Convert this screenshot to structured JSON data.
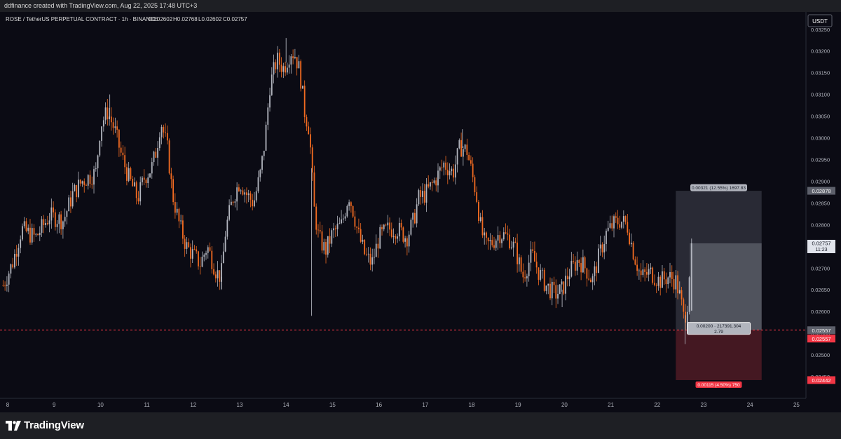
{
  "header": {
    "caption": "ddfinance created with TradingView.com, Aug 22, 2025 17:48 UTC+3"
  },
  "legend": {
    "symbol": "ROSE / TetherUS PERPETUAL CONTRACT · 1h · BINANCE",
    "open": "O0.02602",
    "high": "H0.02768",
    "low": "L0.02602",
    "close": "C0.02757"
  },
  "currency_button": "USDT",
  "footer": {
    "brand": "TradingView",
    "logo_icon": "tradingview-logo-icon"
  },
  "colors": {
    "background": "#0b0b14",
    "up_candle": "#b2b5be",
    "down_candle": "#f26b21",
    "price_line": "#f23645",
    "profit_zone": "#434651",
    "loss_zone": "#4a1a24"
  },
  "chart_data": {
    "type": "candlestick",
    "title": "ROSE / TetherUS PERPETUAL CONTRACT · 1h · BINANCE",
    "y_axis": {
      "min": 0.024,
      "max": 0.0329,
      "ticks": [
        "0.03250",
        "0.03200",
        "0.03150",
        "0.03100",
        "0.03050",
        "0.03000",
        "0.02950",
        "0.02900",
        "0.02850",
        "0.02800",
        "0.02750",
        "0.02700",
        "0.02650",
        "0.02600",
        "0.02550",
        "0.02500",
        "0.02450",
        "0.02400"
      ]
    },
    "x_axis": {
      "ticks": [
        "8",
        "9",
        "10",
        "11",
        "12",
        "13",
        "14",
        "15",
        "16",
        "17",
        "18",
        "19",
        "20",
        "21",
        "22",
        "23",
        "24",
        "25"
      ]
    },
    "candle_path": [
      [
        7.9,
        0.0266
      ],
      [
        8.1,
        0.0271
      ],
      [
        8.3,
        0.0279
      ],
      [
        8.6,
        0.0277
      ],
      [
        8.9,
        0.0282
      ],
      [
        9.2,
        0.0281
      ],
      [
        9.4,
        0.0287
      ],
      [
        9.6,
        0.029
      ],
      [
        9.9,
        0.0292
      ],
      [
        10.0,
        0.0303
      ],
      [
        10.15,
        0.0306
      ],
      [
        10.3,
        0.0302
      ],
      [
        10.45,
        0.0296
      ],
      [
        10.6,
        0.0291
      ],
      [
        10.8,
        0.0286
      ],
      [
        10.95,
        0.0291
      ],
      [
        11.1,
        0.0293
      ],
      [
        11.2,
        0.0297
      ],
      [
        11.3,
        0.0304
      ],
      [
        11.45,
        0.0297
      ],
      [
        11.55,
        0.0287
      ],
      [
        11.7,
        0.028
      ],
      [
        11.85,
        0.0275
      ],
      [
        12.0,
        0.0273
      ],
      [
        12.15,
        0.0271
      ],
      [
        12.3,
        0.0275
      ],
      [
        12.5,
        0.0269
      ],
      [
        12.6,
        0.0268
      ],
      [
        12.7,
        0.0279
      ],
      [
        12.85,
        0.0286
      ],
      [
        13.0,
        0.029
      ],
      [
        13.15,
        0.0287
      ],
      [
        13.3,
        0.0285
      ],
      [
        13.45,
        0.0292
      ],
      [
        13.55,
        0.03
      ],
      [
        13.65,
        0.0312
      ],
      [
        13.8,
        0.0318
      ],
      [
        13.95,
        0.0316
      ],
      [
        14.1,
        0.032
      ],
      [
        14.2,
        0.0319
      ],
      [
        14.3,
        0.0315
      ],
      [
        14.4,
        0.0306
      ],
      [
        14.5,
        0.0302
      ],
      [
        14.6,
        0.0284
      ],
      [
        14.7,
        0.0277
      ],
      [
        14.85,
        0.0274
      ],
      [
        15.0,
        0.0278
      ],
      [
        15.2,
        0.028
      ],
      [
        15.35,
        0.0287
      ],
      [
        15.45,
        0.0283
      ],
      [
        15.55,
        0.0278
      ],
      [
        15.7,
        0.0273
      ],
      [
        15.85,
        0.0271
      ],
      [
        16.0,
        0.0277
      ],
      [
        16.2,
        0.0279
      ],
      [
        16.4,
        0.0279
      ],
      [
        16.6,
        0.0277
      ],
      [
        16.75,
        0.0281
      ],
      [
        16.85,
        0.0286
      ],
      [
        17.0,
        0.0287
      ],
      [
        17.2,
        0.029
      ],
      [
        17.4,
        0.0294
      ],
      [
        17.6,
        0.0292
      ],
      [
        17.75,
        0.0298
      ],
      [
        17.9,
        0.0297
      ],
      [
        18.0,
        0.0292
      ],
      [
        18.1,
        0.0287
      ],
      [
        18.2,
        0.0279
      ],
      [
        18.3,
        0.0275
      ],
      [
        18.45,
        0.0276
      ],
      [
        18.6,
        0.0278
      ],
      [
        18.8,
        0.0277
      ],
      [
        18.95,
        0.0274
      ],
      [
        19.1,
        0.0268
      ],
      [
        19.3,
        0.0273
      ],
      [
        19.45,
        0.0269
      ],
      [
        19.6,
        0.0266
      ],
      [
        19.8,
        0.0264
      ],
      [
        19.95,
        0.0265
      ],
      [
        20.1,
        0.0269
      ],
      [
        20.3,
        0.0272
      ],
      [
        20.45,
        0.027
      ],
      [
        20.6,
        0.0267
      ],
      [
        20.75,
        0.0273
      ],
      [
        20.9,
        0.0278
      ],
      [
        21.05,
        0.028
      ],
      [
        21.2,
        0.0281
      ],
      [
        21.35,
        0.028
      ],
      [
        21.5,
        0.0273
      ],
      [
        21.65,
        0.0268
      ],
      [
        21.85,
        0.0269
      ],
      [
        22.05,
        0.0267
      ],
      [
        22.25,
        0.0268
      ],
      [
        22.4,
        0.0267
      ],
      [
        22.5,
        0.0263
      ],
      [
        22.58,
        0.0258
      ],
      [
        22.65,
        0.0262
      ],
      [
        22.72,
        0.0274
      ]
    ],
    "wicks": [
      {
        "x": 14.55,
        "low": 0.0259
      },
      {
        "x": 14.0,
        "high": 0.0323
      },
      {
        "x": 10.2,
        "high": 0.031
      },
      {
        "x": 17.8,
        "high": 0.0302
      },
      {
        "x": 12.6,
        "low": 0.0265
      },
      {
        "x": 19.95,
        "low": 0.0261
      },
      {
        "x": 22.6,
        "low": 0.02525
      }
    ],
    "position": {
      "type": "long",
      "entry": 0.02557,
      "target": 0.02878,
      "stop": 0.02442,
      "current": 0.02757,
      "profit_label": "0.00321 (12.55%) 1697.83",
      "entry_label_1": "0.00200 · 217391.304",
      "entry_label_2": "2.79",
      "loss_label": "0.00115 (4.50%) 750"
    },
    "price_tags": {
      "target": "0.02878",
      "current": "0.02757",
      "countdown": "11:23",
      "entry_1": "0.02557",
      "entry_2": "0.02557",
      "stop": "0.02442"
    }
  }
}
